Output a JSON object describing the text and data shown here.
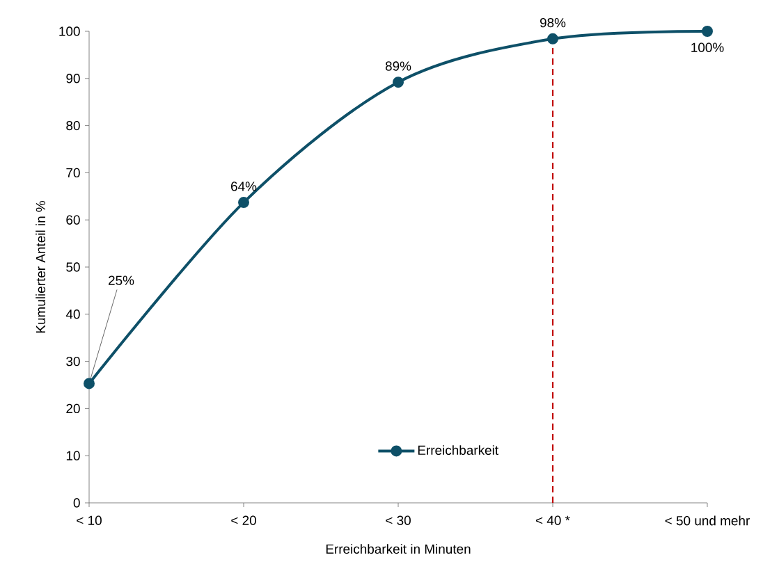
{
  "chart_data": {
    "type": "line",
    "xlabel": "Erreichbarkeit in Minuten",
    "ylabel": "Kumulierter Anteil in %",
    "categories": [
      "< 10",
      "< 20",
      "< 30",
      "< 40 *",
      "< 50 und mehr"
    ],
    "series": [
      {
        "name": "Erreichbarkeit",
        "color": "#0e5068",
        "values": [
          25.3,
          63.7,
          89.2,
          98.4,
          100
        ],
        "value_labels": [
          "25%",
          "64%",
          "89%",
          "98%",
          "100%"
        ]
      }
    ],
    "ylim": [
      0,
      100
    ],
    "yticks": [
      0,
      10,
      20,
      30,
      40,
      50,
      60,
      70,
      80,
      90,
      100
    ],
    "ref_lines": [
      {
        "axis": "x",
        "value": "< 40 *",
        "color": "#c00000",
        "line_style": "dashed"
      }
    ],
    "grid": false,
    "legend": "bottom",
    "marker": "circle",
    "line_style": "solid"
  }
}
